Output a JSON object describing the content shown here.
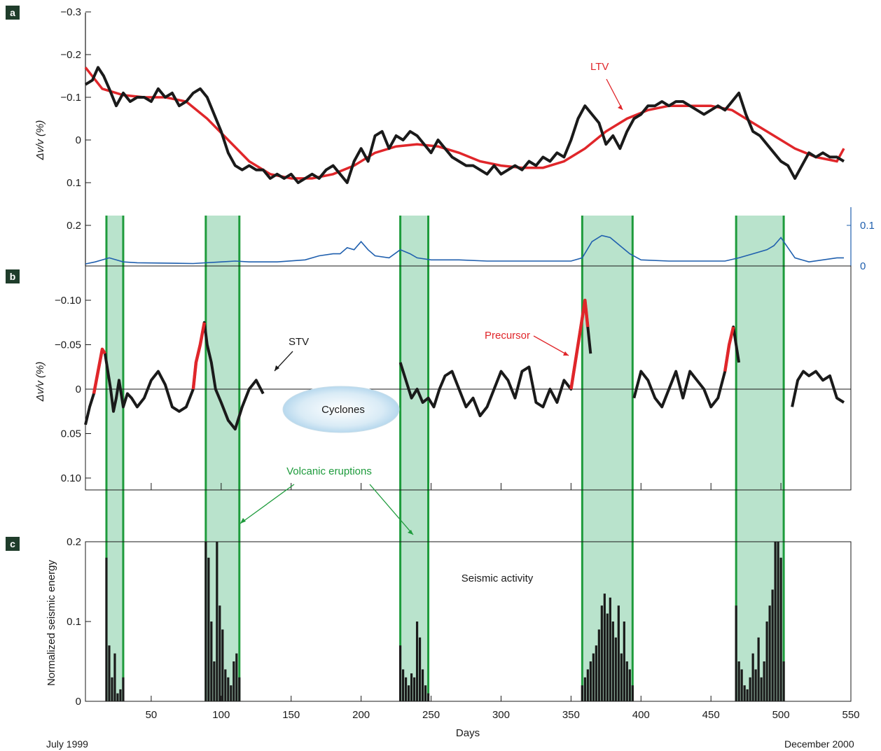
{
  "x_axis": {
    "label": "Days",
    "start_label": "July 1999",
    "end_label": "December 2000",
    "ticks": [
      50,
      100,
      150,
      200,
      250,
      300,
      350,
      400,
      450,
      500,
      550
    ],
    "range": [
      3,
      550
    ]
  },
  "colors": {
    "black": "#1a1a1a",
    "red": "#e0262a",
    "green": "#1e9b3c",
    "eruption_fill": "#b9e3cc",
    "blue": "#1f5fae"
  },
  "eruptions": [
    [
      18,
      30
    ],
    [
      89,
      113
    ],
    [
      228,
      248
    ],
    [
      358,
      394
    ],
    [
      468,
      502
    ]
  ],
  "panel_a": {
    "badge": "a",
    "ylabel": "Δv/v (%)",
    "y_ticks": [
      -0.3,
      -0.2,
      -0.1,
      0,
      0.1,
      0.2
    ],
    "y_tick_labels": [
      "−0.3",
      "−0.2",
      "−0.1",
      "0",
      "0.1",
      "0.2"
    ],
    "ylim": [
      -0.3,
      0.2
    ],
    "ltv_label": "LTV",
    "right_ticks": [
      0.1,
      0
    ],
    "right_tick_labels": [
      "0.1",
      "0"
    ]
  },
  "panel_b": {
    "badge": "b",
    "ylabel": "Δv/v (%)",
    "y_ticks": [
      -0.1,
      -0.05,
      0,
      0.05,
      0.1
    ],
    "y_tick_labels": [
      "−0.10",
      "−0.05",
      "0",
      "0.05",
      "0.10"
    ],
    "ylim": [
      -0.11,
      0.115
    ],
    "stv_label": "STV",
    "precursor_label": "Precursor",
    "cyclones_label": "Cyclones"
  },
  "panel_c": {
    "badge": "c",
    "ylabel": "Normalized seismic energy",
    "y_ticks": [
      0,
      0.1,
      0.2
    ],
    "y_tick_labels": [
      "0",
      "0.1",
      "0.2"
    ],
    "ylim": [
      0,
      0.2
    ],
    "title": "Seismic activity",
    "eruptions_label": "Volcanic eruptions"
  },
  "chart_data": [
    {
      "type": "line",
      "panel": "a",
      "series": [
        {
          "name": "",
          "x": [
            3,
            8,
            12,
            16,
            20,
            25,
            30,
            35,
            40,
            45,
            50,
            55,
            60,
            65,
            70,
            75,
            80,
            85,
            90,
            95,
            100,
            105,
            110,
            115,
            120,
            125,
            130,
            135,
            140,
            145,
            150,
            155,
            160,
            165,
            170,
            175,
            180,
            185,
            190,
            195,
            200,
            205,
            210,
            215,
            220,
            225,
            230,
            235,
            240,
            245,
            250,
            255,
            260,
            265,
            270,
            275,
            280,
            285,
            290,
            295,
            300,
            305,
            310,
            315,
            320,
            325,
            330,
            335,
            340,
            345,
            350,
            355,
            360,
            365,
            370,
            375,
            380,
            385,
            390,
            395,
            400,
            405,
            410,
            415,
            420,
            425,
            430,
            435,
            440,
            445,
            450,
            455,
            460,
            465,
            470,
            475,
            480,
            485,
            490,
            495,
            500,
            505,
            510,
            515,
            520,
            525,
            530,
            535,
            540,
            545
          ],
          "y": [
            -0.13,
            -0.14,
            -0.17,
            -0.15,
            -0.12,
            -0.08,
            -0.11,
            -0.09,
            -0.1,
            -0.1,
            -0.09,
            -0.12,
            -0.1,
            -0.11,
            -0.08,
            -0.09,
            -0.11,
            -0.12,
            -0.1,
            -0.06,
            -0.02,
            0.03,
            0.06,
            0.07,
            0.06,
            0.07,
            0.07,
            0.09,
            0.08,
            0.09,
            0.08,
            0.1,
            0.09,
            0.08,
            0.09,
            0.07,
            0.06,
            0.08,
            0.1,
            0.05,
            0.02,
            0.05,
            -0.01,
            -0.02,
            0.02,
            -0.01,
            0.0,
            -0.02,
            -0.01,
            0.01,
            0.03,
            0.0,
            0.02,
            0.04,
            0.05,
            0.06,
            0.06,
            0.07,
            0.08,
            0.06,
            0.08,
            0.07,
            0.06,
            0.07,
            0.05,
            0.06,
            0.04,
            0.05,
            0.03,
            0.04,
            0.0,
            -0.05,
            -0.08,
            -0.06,
            -0.04,
            0.01,
            -0.01,
            0.02,
            -0.02,
            -0.05,
            -0.06,
            -0.08,
            -0.08,
            -0.09,
            -0.08,
            -0.09,
            -0.09,
            -0.08,
            -0.07,
            -0.06,
            -0.07,
            -0.08,
            -0.07,
            -0.09,
            -0.11,
            -0.06,
            -0.02,
            -0.01,
            0.01,
            0.03,
            0.05,
            0.06,
            0.09,
            0.06,
            0.03,
            0.04,
            0.03,
            0.04,
            0.04,
            0.05
          ]
        },
        {
          "name": "LTV",
          "x": [
            3,
            15,
            30,
            45,
            60,
            75,
            90,
            105,
            120,
            135,
            150,
            165,
            180,
            195,
            210,
            225,
            240,
            255,
            270,
            285,
            300,
            315,
            330,
            345,
            360,
            375,
            390,
            405,
            420,
            435,
            450,
            465,
            480,
            495,
            510,
            525,
            540,
            545
          ],
          "y": [
            -0.17,
            -0.12,
            -0.105,
            -0.1,
            -0.1,
            -0.09,
            -0.05,
            0.0,
            0.05,
            0.08,
            0.09,
            0.09,
            0.08,
            0.06,
            0.03,
            0.015,
            0.01,
            0.015,
            0.03,
            0.05,
            0.06,
            0.065,
            0.065,
            0.05,
            0.02,
            -0.02,
            -0.05,
            -0.07,
            -0.08,
            -0.08,
            -0.08,
            -0.07,
            -0.04,
            -0.01,
            0.02,
            0.04,
            0.05,
            0.02
          ]
        }
      ],
      "xlabel": "Days",
      "ylabel": "Δv/v (%)"
    },
    {
      "type": "line",
      "panel": "a-lower",
      "name": "",
      "x": [
        3,
        10,
        20,
        30,
        40,
        60,
        80,
        100,
        110,
        120,
        140,
        160,
        170,
        180,
        185,
        190,
        195,
        200,
        205,
        210,
        220,
        228,
        235,
        240,
        250,
        270,
        290,
        310,
        330,
        350,
        358,
        365,
        372,
        378,
        385,
        392,
        400,
        420,
        440,
        460,
        470,
        480,
        490,
        495,
        500,
        505,
        510,
        520,
        540,
        545
      ],
      "y": [
        0.005,
        0.01,
        0.02,
        0.01,
        0.008,
        0.007,
        0.006,
        0.01,
        0.012,
        0.01,
        0.01,
        0.015,
        0.025,
        0.03,
        0.03,
        0.045,
        0.04,
        0.06,
        0.04,
        0.025,
        0.02,
        0.04,
        0.03,
        0.02,
        0.015,
        0.015,
        0.012,
        0.012,
        0.012,
        0.012,
        0.02,
        0.06,
        0.075,
        0.07,
        0.05,
        0.03,
        0.015,
        0.012,
        0.012,
        0.012,
        0.02,
        0.03,
        0.04,
        0.05,
        0.07,
        0.045,
        0.02,
        0.01,
        0.02,
        0.02
      ]
    },
    {
      "type": "line",
      "panel": "b",
      "name": "STV",
      "segments": [
        {
          "x": [
            3,
            6,
            9,
            12,
            15,
            17,
            19,
            21,
            23,
            25,
            27,
            30,
            33,
            36,
            40,
            45,
            50,
            55,
            60,
            65,
            70,
            75,
            80,
            82,
            85,
            88,
            90,
            93,
            96,
            100,
            105,
            110,
            115,
            120,
            125,
            130
          ],
          "y": [
            0.04,
            0.02,
            0.005,
            -0.02,
            -0.045,
            -0.04,
            -0.02,
            0.0,
            0.025,
            0.01,
            -0.01,
            0.02,
            0.005,
            0.01,
            0.02,
            0.01,
            -0.01,
            -0.02,
            -0.005,
            0.02,
            0.025,
            0.02,
            0.0,
            -0.03,
            -0.05,
            -0.075,
            -0.05,
            -0.03,
            0.0,
            0.015,
            0.035,
            0.045,
            0.02,
            0.0,
            -0.01,
            0.005
          ]
        },
        {
          "x": [
            228,
            232,
            236,
            240,
            244,
            248,
            252,
            256,
            260,
            265,
            270,
            275,
            280,
            285,
            290,
            295,
            300,
            305,
            310,
            315,
            320,
            325,
            330,
            335,
            340,
            345,
            350,
            352,
            355,
            358,
            360,
            362,
            364
          ],
          "y": [
            -0.03,
            -0.01,
            0.01,
            0.0,
            0.015,
            0.01,
            0.02,
            0.0,
            -0.015,
            -0.02,
            0.0,
            0.02,
            0.01,
            0.03,
            0.02,
            0.0,
            -0.02,
            -0.01,
            0.01,
            -0.02,
            -0.025,
            0.015,
            0.02,
            0.0,
            0.015,
            -0.01,
            0.0,
            -0.02,
            -0.05,
            -0.08,
            -0.1,
            -0.07,
            -0.04
          ]
        },
        {
          "x": [
            395,
            400,
            405,
            410,
            415,
            420,
            425,
            430,
            435,
            440,
            445,
            450,
            455,
            460,
            463,
            466,
            468,
            470
          ],
          "y": [
            0.01,
            -0.02,
            -0.01,
            0.01,
            0.02,
            0.0,
            -0.02,
            0.01,
            -0.02,
            -0.01,
            0.0,
            0.02,
            0.01,
            -0.02,
            -0.05,
            -0.07,
            -0.05,
            -0.03
          ]
        },
        {
          "x": [
            508,
            512,
            516,
            520,
            525,
            530,
            535,
            540,
            545
          ],
          "y": [
            0.02,
            -0.01,
            -0.02,
            -0.015,
            -0.02,
            -0.01,
            -0.015,
            0.01,
            0.015
          ]
        }
      ],
      "xlabel": "Days",
      "ylabel": "Δv/v (%)"
    },
    {
      "type": "bar",
      "panel": "c",
      "name": "",
      "x": [
        18,
        20,
        22,
        24,
        26,
        28,
        30,
        89,
        91,
        93,
        95,
        97,
        99,
        101,
        103,
        105,
        107,
        109,
        111,
        113,
        228,
        230,
        232,
        234,
        236,
        238,
        240,
        242,
        244,
        246,
        248,
        358,
        360,
        362,
        364,
        366,
        368,
        370,
        372,
        374,
        376,
        378,
        380,
        382,
        384,
        386,
        388,
        390,
        392,
        394,
        468,
        470,
        472,
        474,
        476,
        478,
        480,
        482,
        484,
        486,
        488,
        490,
        492,
        494,
        496,
        498,
        500,
        502
      ],
      "values": [
        0.18,
        0.07,
        0.03,
        0.06,
        0.01,
        0.015,
        0.03,
        0.2,
        0.18,
        0.1,
        0.05,
        0.2,
        0.12,
        0.09,
        0.04,
        0.03,
        0.02,
        0.05,
        0.06,
        0.03,
        0.07,
        0.04,
        0.03,
        0.02,
        0.035,
        0.03,
        0.1,
        0.08,
        0.04,
        0.02,
        0.01,
        0.02,
        0.03,
        0.04,
        0.05,
        0.06,
        0.07,
        0.09,
        0.12,
        0.135,
        0.11,
        0.13,
        0.1,
        0.08,
        0.12,
        0.06,
        0.1,
        0.05,
        0.04,
        0.02,
        0.12,
        0.05,
        0.04,
        0.02,
        0.015,
        0.03,
        0.06,
        0.04,
        0.08,
        0.03,
        0.05,
        0.1,
        0.12,
        0.14,
        0.2,
        0.2,
        0.18,
        0.05
      ],
      "xlabel": "Days",
      "ylabel": "Normalized seismic energy",
      "ylim": [
        0,
        0.2
      ]
    }
  ]
}
